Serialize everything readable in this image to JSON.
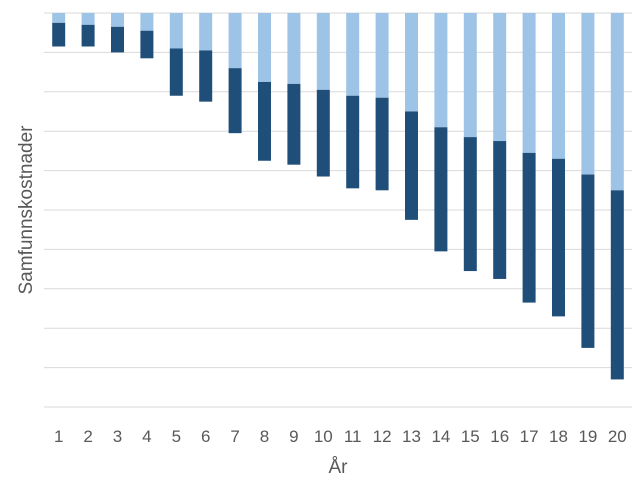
{
  "chart_data": {
    "type": "bar",
    "stacked": true,
    "xlabel": "År",
    "ylabel": "Samfunnskostnader",
    "categories": [
      "1",
      "2",
      "3",
      "4",
      "5",
      "6",
      "7",
      "8",
      "9",
      "10",
      "11",
      "12",
      "13",
      "14",
      "15",
      "16",
      "17",
      "18",
      "19",
      "20"
    ],
    "ylim": [
      -10,
      0
    ],
    "grid": true,
    "y_tick_labels_shown": false,
    "series": [
      {
        "values": [
          -0.25,
          -0.3,
          -0.35,
          -0.45,
          -0.9,
          -0.95,
          -1.4,
          -1.75,
          -1.8,
          -1.95,
          -2.1,
          -2.15,
          -2.5,
          -2.9,
          -3.15,
          -3.25,
          -3.55,
          -3.7,
          -4.1,
          -4.5
        ],
        "color": "#9dc3e6"
      },
      {
        "values": [
          -0.6,
          -0.55,
          -0.65,
          -0.7,
          -1.2,
          -1.3,
          -1.65,
          -2.0,
          -2.05,
          -2.2,
          -2.35,
          -2.35,
          -2.75,
          -3.15,
          -3.4,
          -3.5,
          -3.8,
          -4.0,
          -4.4,
          -4.8
        ],
        "color": "#1f4e79"
      }
    ]
  }
}
